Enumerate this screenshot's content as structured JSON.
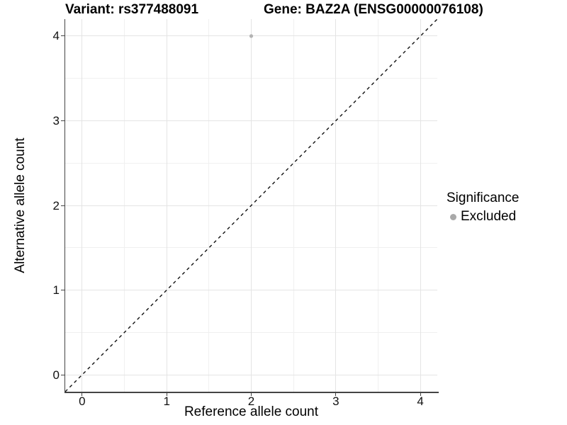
{
  "chart_data": {
    "type": "scatter",
    "titles": {
      "left": "Variant: rs377488091",
      "right": "Gene: BAZ2A (ENSG00000076108)"
    },
    "xlabel": "Reference allele count",
    "ylabel": "Alternative allele count",
    "xlim": [
      -0.2,
      4.2
    ],
    "ylim": [
      -0.2,
      4.2
    ],
    "x_ticks": [
      0,
      1,
      2,
      3,
      4
    ],
    "y_ticks": [
      0,
      1,
      2,
      3,
      4
    ],
    "minor_gridlines": [
      0.5,
      1.5,
      2.5,
      3.5
    ],
    "grid": "major and minor gridlines, light gray on white panel; axis lines left+bottom only",
    "points": [
      {
        "x": 2,
        "y": 4,
        "series": "Excluded"
      }
    ],
    "reference_line": {
      "type": "identity y=x",
      "style": "dashed",
      "color": "#111111"
    },
    "legend": {
      "title": "Significance",
      "position": "right",
      "entries": [
        {
          "label": "Excluded",
          "marker": "circle",
          "color": "#a9a9a9"
        }
      ]
    },
    "colors": {
      "point": "#b3b3b3",
      "grid_major": "#e4e4e4",
      "grid_minor": "#f0f0f0",
      "axis_line": "#444444",
      "text": "#000000"
    }
  }
}
